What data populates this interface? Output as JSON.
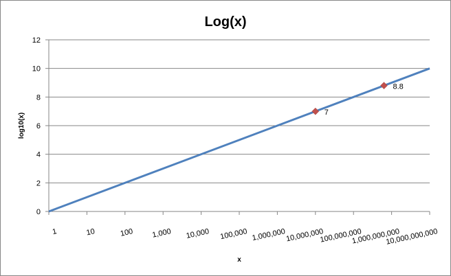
{
  "chart_data": {
    "type": "line",
    "title": "Log(x)",
    "xlabel": "x",
    "ylabel": "log10(x)",
    "x_scale": "log",
    "xlim": [
      1,
      10000000000
    ],
    "ylim": [
      0,
      12
    ],
    "grid": "horizontal",
    "x_tick_labels": [
      "1",
      "10",
      "100",
      "1,000",
      "10,000",
      "100,000",
      "1,000,000",
      "10,000,000",
      "100,000,000",
      "1,000,000,000",
      "10,000,000,000"
    ],
    "y_tick_labels": [
      "0",
      "2",
      "4",
      "6",
      "8",
      "10",
      "12"
    ],
    "series": [
      {
        "x": [
          1,
          10000000000
        ],
        "y": [
          0,
          10
        ],
        "color": "#4f81bd"
      }
    ],
    "points": [
      {
        "x": 10000000,
        "y": 7,
        "label": "7",
        "color": "#c0504d"
      },
      {
        "x": 630000000,
        "y": 8.8,
        "label": "8.8",
        "color": "#c0504d"
      }
    ]
  }
}
